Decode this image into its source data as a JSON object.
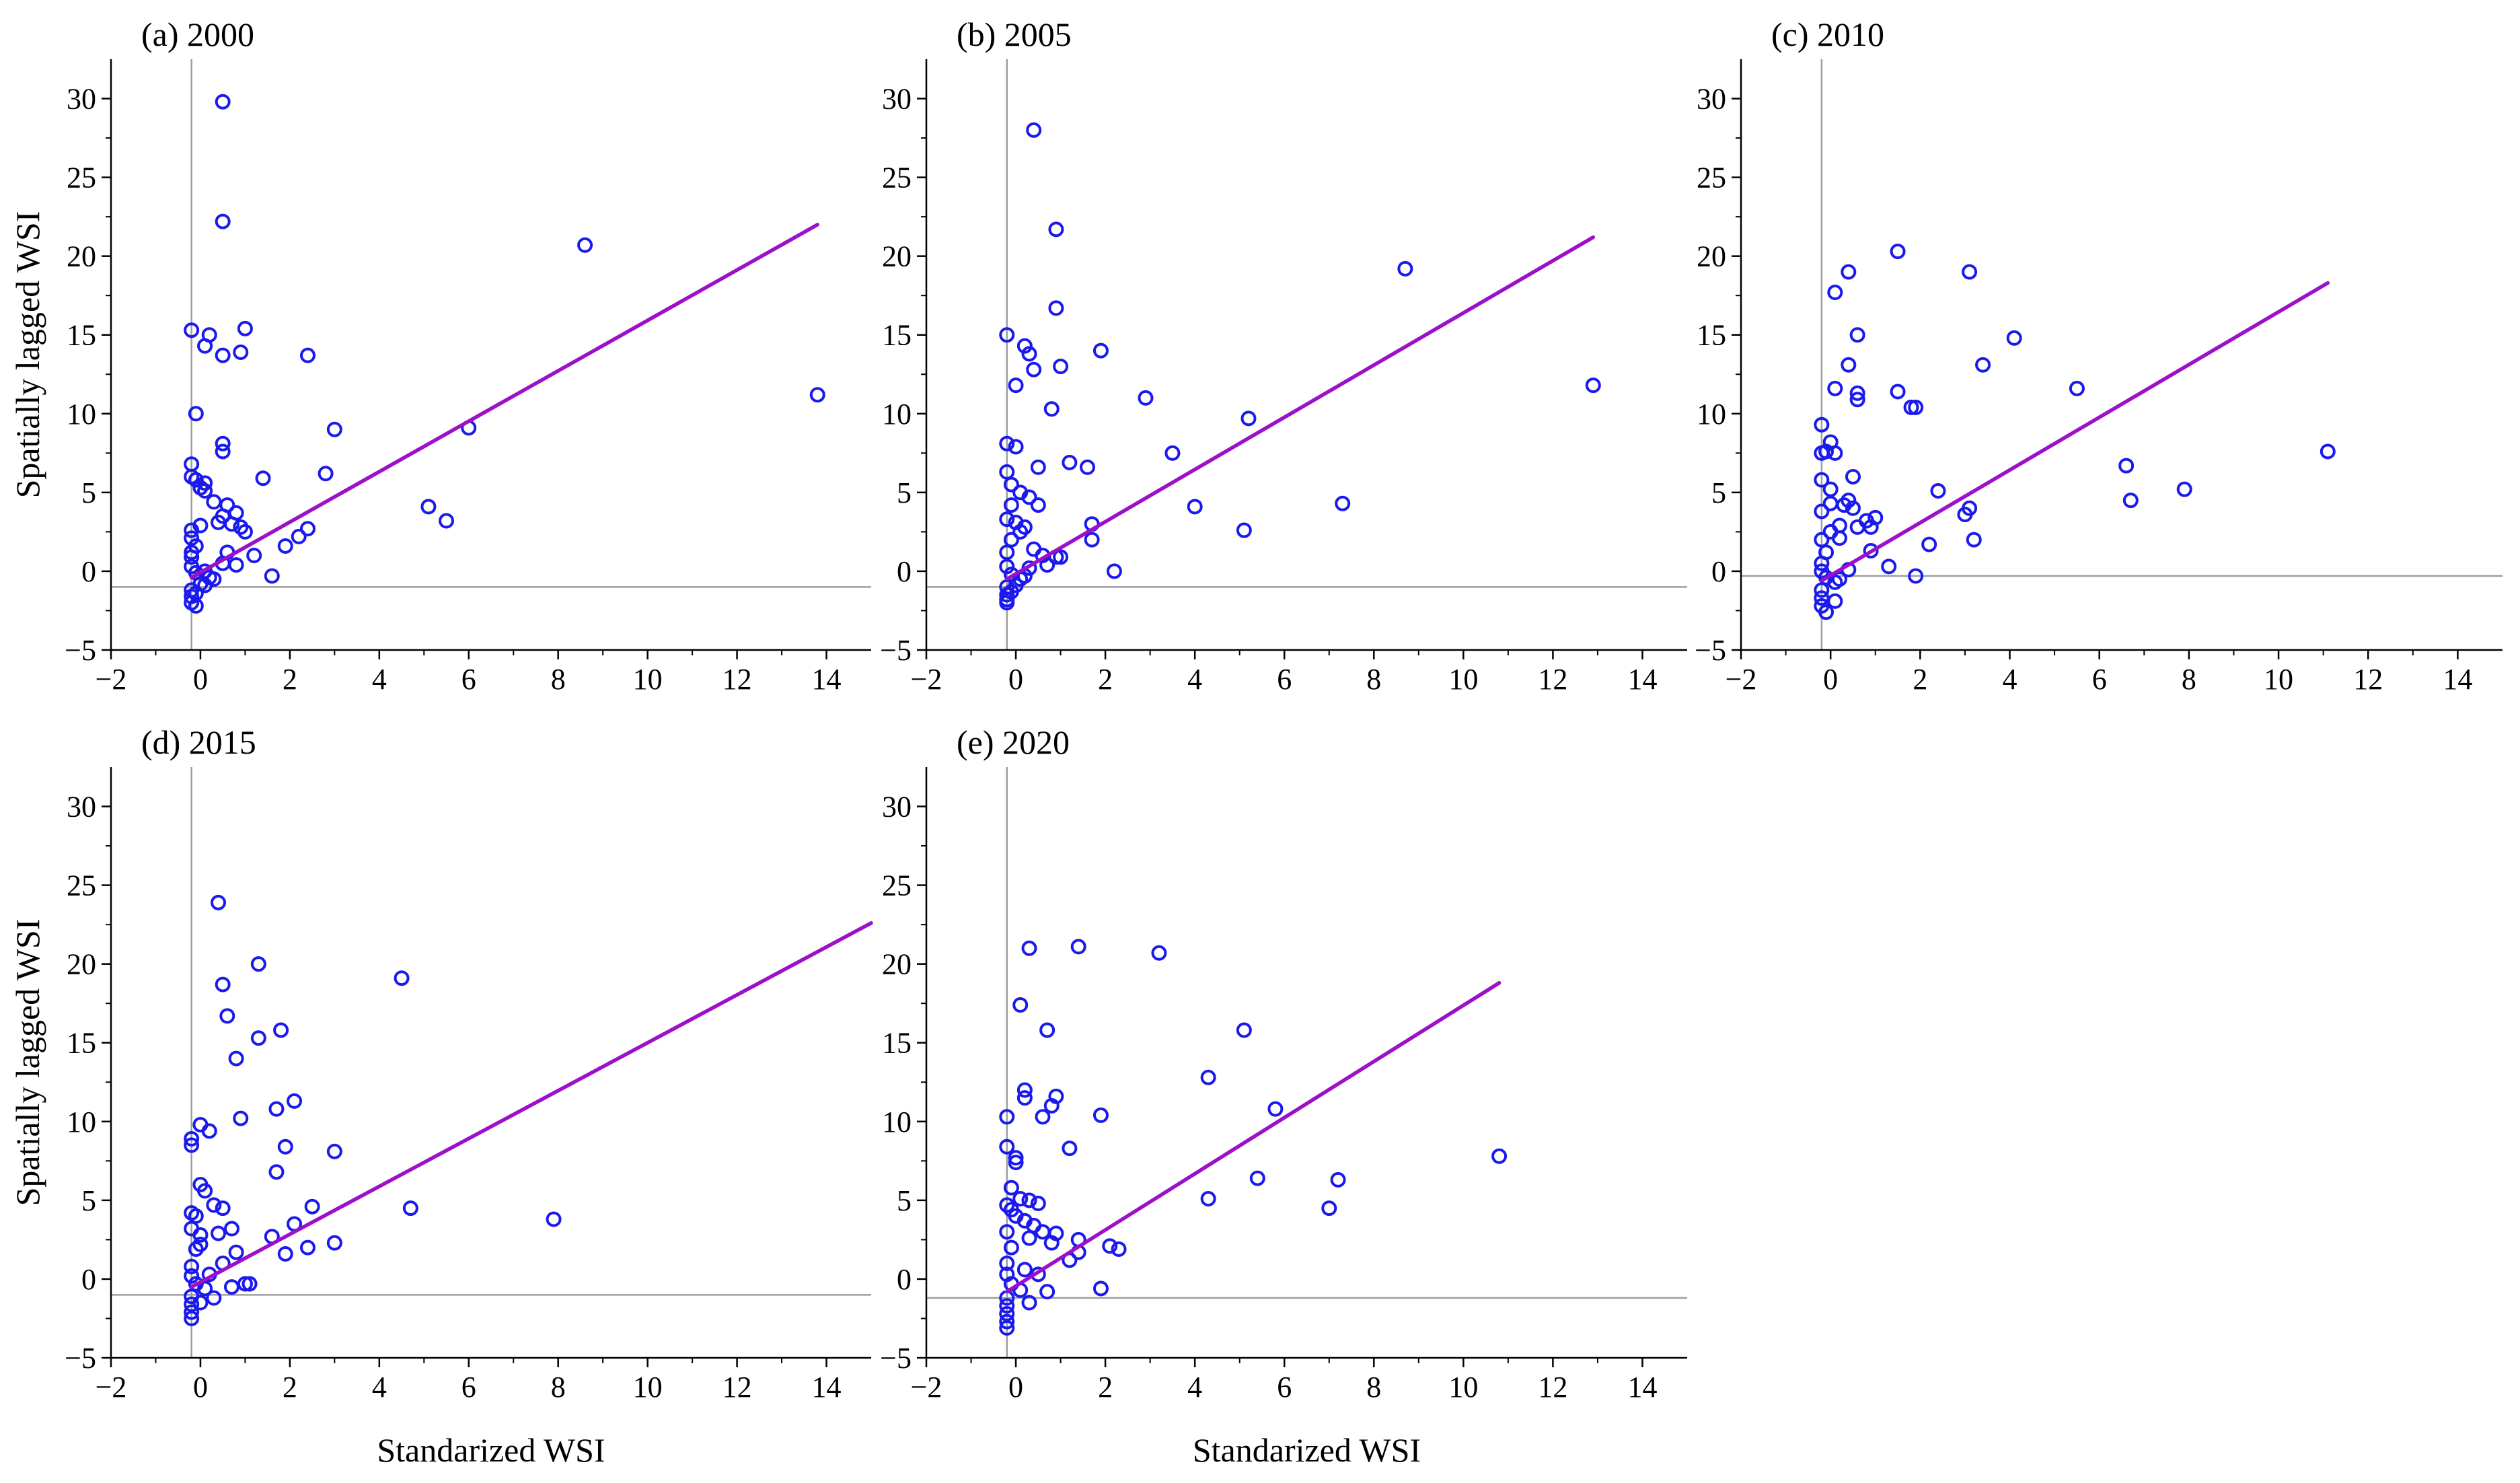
{
  "figure": {
    "shared_ylabel": "Spatially lagged WSI",
    "shared_xlabel": "Standarized WSI"
  },
  "style": {
    "point_color": "#1a1aee",
    "fit_color": "#9b10c8",
    "axis_color": "#000000",
    "ref_line_color": "#9e9e9e"
  },
  "chart_data": [
    {
      "type": "scatter",
      "title": "(a)  2000",
      "xlabel": "",
      "ylabel": "Spatially lagged WSI",
      "xlim": [
        -2,
        15
      ],
      "ylim": [
        -5,
        32.5
      ],
      "xticks": [
        -2,
        0,
        2,
        4,
        6,
        8,
        10,
        12,
        14
      ],
      "yticks": [
        -5,
        0,
        5,
        10,
        15,
        20,
        25,
        30
      ],
      "ref_v": -0.2,
      "ref_h": -1.0,
      "fit": {
        "x0": -0.2,
        "y0": -0.4,
        "x1": 13.8,
        "y1": 22.0
      },
      "points": [
        [
          0.5,
          29.8
        ],
        [
          0.5,
          22.2
        ],
        [
          8.6,
          20.7
        ],
        [
          13.8,
          11.2
        ],
        [
          -0.2,
          15.3
        ],
        [
          0.2,
          15.0
        ],
        [
          1.0,
          15.4
        ],
        [
          0.1,
          14.3
        ],
        [
          0.5,
          13.7
        ],
        [
          0.9,
          13.9
        ],
        [
          2.4,
          13.7
        ],
        [
          -0.1,
          10.0
        ],
        [
          3.0,
          9.0
        ],
        [
          6.0,
          9.1
        ],
        [
          0.5,
          8.1
        ],
        [
          0.5,
          7.6
        ],
        [
          -0.2,
          6.8
        ],
        [
          -0.2,
          6.0
        ],
        [
          -0.1,
          5.8
        ],
        [
          0.1,
          5.6
        ],
        [
          0.0,
          5.3
        ],
        [
          0.1,
          5.1
        ],
        [
          1.4,
          5.9
        ],
        [
          2.8,
          6.2
        ],
        [
          5.1,
          4.1
        ],
        [
          5.5,
          3.2
        ],
        [
          0.3,
          4.4
        ],
        [
          0.6,
          4.2
        ],
        [
          0.8,
          3.7
        ],
        [
          0.5,
          3.5
        ],
        [
          0.4,
          3.1
        ],
        [
          0.7,
          3.0
        ],
        [
          0.9,
          2.8
        ],
        [
          1.0,
          2.5
        ],
        [
          2.4,
          2.7
        ],
        [
          2.2,
          2.2
        ],
        [
          1.9,
          1.6
        ],
        [
          1.2,
          1.0
        ],
        [
          0.8,
          0.4
        ],
        [
          1.6,
          -0.3
        ],
        [
          0.6,
          1.2
        ],
        [
          0.0,
          2.9
        ],
        [
          -0.2,
          2.1
        ],
        [
          -0.1,
          1.6
        ],
        [
          -0.2,
          0.9
        ],
        [
          -0.2,
          0.3
        ],
        [
          -0.1,
          -0.1
        ],
        [
          0.1,
          0.0
        ],
        [
          0.2,
          -0.4
        ],
        [
          0.0,
          -0.8
        ],
        [
          -0.2,
          -1.2
        ],
        [
          -0.2,
          -1.6
        ],
        [
          -0.2,
          -2.0
        ],
        [
          -0.1,
          -2.2
        ],
        [
          0.1,
          -0.9
        ],
        [
          0.3,
          -0.5
        ],
        [
          0.5,
          0.5
        ],
        [
          -0.2,
          1.2
        ],
        [
          -0.1,
          -1.4
        ],
        [
          -0.2,
          2.6
        ]
      ]
    },
    {
      "type": "scatter",
      "title": "(b) 2005",
      "xlabel": "",
      "ylabel": "",
      "xlim": [
        -2,
        15
      ],
      "ylim": [
        -5,
        32.5
      ],
      "xticks": [
        -2,
        0,
        2,
        4,
        6,
        8,
        10,
        12,
        14
      ],
      "yticks": [
        -5,
        0,
        5,
        10,
        15,
        20,
        25,
        30
      ],
      "ref_v": -0.2,
      "ref_h": -1.0,
      "fit": {
        "x0": -0.2,
        "y0": -0.5,
        "x1": 12.9,
        "y1": 21.2
      },
      "points": [
        [
          0.4,
          28.0
        ],
        [
          0.9,
          21.7
        ],
        [
          8.7,
          19.2
        ],
        [
          12.9,
          11.8
        ],
        [
          0.9,
          16.7
        ],
        [
          -0.2,
          15.0
        ],
        [
          0.2,
          14.3
        ],
        [
          0.3,
          13.8
        ],
        [
          0.4,
          12.8
        ],
        [
          1.0,
          13.0
        ],
        [
          1.9,
          14.0
        ],
        [
          0.0,
          11.8
        ],
        [
          0.8,
          10.3
        ],
        [
          2.9,
          11.0
        ],
        [
          5.2,
          9.7
        ],
        [
          -0.2,
          8.1
        ],
        [
          0.0,
          7.9
        ],
        [
          1.2,
          6.9
        ],
        [
          1.6,
          6.6
        ],
        [
          0.5,
          6.6
        ],
        [
          3.5,
          7.5
        ],
        [
          -0.2,
          6.3
        ],
        [
          -0.1,
          5.5
        ],
        [
          0.1,
          5.0
        ],
        [
          0.3,
          4.7
        ],
        [
          0.5,
          4.2
        ],
        [
          -0.1,
          4.2
        ],
        [
          4.0,
          4.1
        ],
        [
          7.3,
          4.3
        ],
        [
          1.7,
          3.0
        ],
        [
          5.1,
          2.6
        ],
        [
          1.7,
          2.0
        ],
        [
          0.2,
          2.8
        ],
        [
          0.1,
          2.5
        ],
        [
          -0.2,
          3.3
        ],
        [
          -0.1,
          2.0
        ],
        [
          0.4,
          1.4
        ],
        [
          0.6,
          1.0
        ],
        [
          0.9,
          0.9
        ],
        [
          1.0,
          0.9
        ],
        [
          0.7,
          0.4
        ],
        [
          2.2,
          0.0
        ],
        [
          -0.2,
          1.2
        ],
        [
          -0.2,
          0.3
        ],
        [
          -0.1,
          -0.2
        ],
        [
          0.1,
          -0.5
        ],
        [
          -0.2,
          -1.0
        ],
        [
          -0.2,
          -1.5
        ],
        [
          -0.2,
          -2.0
        ],
        [
          0.0,
          -0.9
        ],
        [
          0.2,
          -0.3
        ],
        [
          0.3,
          0.2
        ],
        [
          -0.1,
          -1.3
        ],
        [
          -0.2,
          -1.8
        ],
        [
          0.0,
          3.1
        ]
      ]
    },
    {
      "type": "scatter",
      "title": "(c)  2010",
      "xlabel": "",
      "ylabel": "",
      "xlim": [
        -2,
        15
      ],
      "ylim": [
        -5,
        32.5
      ],
      "xticks": [
        -2,
        0,
        2,
        4,
        6,
        8,
        10,
        12,
        14
      ],
      "yticks": [
        -5,
        0,
        5,
        10,
        15,
        20,
        25,
        30
      ],
      "ref_v": -0.2,
      "ref_h": -0.3,
      "fit": {
        "x0": -0.2,
        "y0": -0.6,
        "x1": 11.1,
        "y1": 18.3
      },
      "points": [
        [
          1.5,
          20.3
        ],
        [
          3.1,
          19.0
        ],
        [
          0.4,
          19.0
        ],
        [
          0.1,
          17.7
        ],
        [
          0.6,
          15.0
        ],
        [
          4.1,
          14.8
        ],
        [
          3.4,
          13.1
        ],
        [
          0.4,
          13.1
        ],
        [
          0.1,
          11.6
        ],
        [
          0.6,
          11.3
        ],
        [
          1.5,
          11.4
        ],
        [
          0.6,
          10.9
        ],
        [
          1.8,
          10.4
        ],
        [
          5.5,
          11.6
        ],
        [
          1.9,
          10.4
        ],
        [
          -0.2,
          9.3
        ],
        [
          -0.1,
          7.6
        ],
        [
          -0.2,
          7.5
        ],
        [
          0.0,
          8.2
        ],
        [
          0.1,
          7.5
        ],
        [
          6.6,
          6.7
        ],
        [
          11.1,
          7.6
        ],
        [
          6.7,
          4.5
        ],
        [
          7.9,
          5.2
        ],
        [
          -0.2,
          5.8
        ],
        [
          0.0,
          5.2
        ],
        [
          0.5,
          6.0
        ],
        [
          2.4,
          5.1
        ],
        [
          0.4,
          4.5
        ],
        [
          0.0,
          4.3
        ],
        [
          0.3,
          4.2
        ],
        [
          0.5,
          4.0
        ],
        [
          3.1,
          4.0
        ],
        [
          3.0,
          3.6
        ],
        [
          0.8,
          3.2
        ],
        [
          0.6,
          2.8
        ],
        [
          1.0,
          3.4
        ],
        [
          0.2,
          2.9
        ],
        [
          0.0,
          2.5
        ],
        [
          0.2,
          2.1
        ],
        [
          0.9,
          2.8
        ],
        [
          2.2,
          1.7
        ],
        [
          3.2,
          2.0
        ],
        [
          1.3,
          0.3
        ],
        [
          0.9,
          1.3
        ],
        [
          1.9,
          -0.3
        ],
        [
          -0.2,
          2.0
        ],
        [
          -0.1,
          1.2
        ],
        [
          -0.2,
          0.5
        ],
        [
          -0.2,
          0.0
        ],
        [
          -0.1,
          -0.4
        ],
        [
          0.1,
          -0.7
        ],
        [
          -0.2,
          -1.2
        ],
        [
          -0.2,
          -1.7
        ],
        [
          -0.2,
          -2.2
        ],
        [
          -0.1,
          -2.6
        ],
        [
          0.2,
          -0.5
        ],
        [
          0.4,
          0.1
        ],
        [
          -0.2,
          3.8
        ],
        [
          0.1,
          -1.9
        ]
      ]
    },
    {
      "type": "scatter",
      "title": "(d)  2015",
      "xlabel": "",
      "ylabel": "Spatially lagged WSI",
      "xlim": [
        -2,
        15
      ],
      "ylim": [
        -5,
        32.5
      ],
      "xticks": [
        -2,
        0,
        2,
        4,
        6,
        8,
        10,
        12,
        14
      ],
      "yticks": [
        -5,
        0,
        5,
        10,
        15,
        20,
        25,
        30
      ],
      "ref_v": -0.2,
      "ref_h": -1.0,
      "fit": {
        "x0": -0.2,
        "y0": -0.5,
        "x1": 15.0,
        "y1": 22.6
      },
      "points": [
        [
          0.4,
          23.9
        ],
        [
          1.3,
          20.0
        ],
        [
          0.5,
          18.7
        ],
        [
          4.5,
          19.1
        ],
        [
          0.6,
          16.7
        ],
        [
          1.8,
          15.8
        ],
        [
          1.3,
          15.3
        ],
        [
          0.8,
          14.0
        ],
        [
          2.1,
          11.3
        ],
        [
          1.7,
          10.8
        ],
        [
          0.9,
          10.2
        ],
        [
          1.9,
          8.4
        ],
        [
          3.0,
          8.1
        ],
        [
          0.0,
          9.8
        ],
        [
          0.2,
          9.4
        ],
        [
          -0.2,
          8.9
        ],
        [
          -0.2,
          8.5
        ],
        [
          1.7,
          6.8
        ],
        [
          0.0,
          6.0
        ],
        [
          0.1,
          5.6
        ],
        [
          -0.2,
          4.2
        ],
        [
          0.3,
          4.7
        ],
        [
          0.5,
          4.5
        ],
        [
          2.5,
          4.6
        ],
        [
          4.7,
          4.5
        ],
        [
          7.9,
          3.8
        ],
        [
          2.1,
          3.5
        ],
        [
          1.6,
          2.7
        ],
        [
          0.7,
          3.2
        ],
        [
          0.4,
          2.9
        ],
        [
          0.0,
          2.8
        ],
        [
          2.4,
          2.0
        ],
        [
          3.0,
          2.3
        ],
        [
          1.9,
          1.6
        ],
        [
          0.8,
          1.7
        ],
        [
          0.5,
          1.0
        ],
        [
          1.0,
          -0.3
        ],
        [
          1.1,
          -0.3
        ],
        [
          0.7,
          -0.5
        ],
        [
          -0.2,
          3.2
        ],
        [
          -0.1,
          1.9
        ],
        [
          -0.2,
          0.8
        ],
        [
          -0.2,
          0.2
        ],
        [
          -0.1,
          -0.3
        ],
        [
          0.1,
          -0.6
        ],
        [
          -0.2,
          -1.1
        ],
        [
          -0.2,
          -1.6
        ],
        [
          -0.2,
          -2.1
        ],
        [
          -0.2,
          -2.5
        ],
        [
          0.0,
          -1.5
        ],
        [
          0.3,
          -1.2
        ],
        [
          0.2,
          0.3
        ],
        [
          -0.1,
          4.0
        ],
        [
          0.0,
          2.2
        ]
      ]
    },
    {
      "type": "scatter",
      "title": "(e) 2020",
      "xlabel": "",
      "ylabel": "",
      "xlim": [
        -2,
        15
      ],
      "ylim": [
        -5,
        32.5
      ],
      "xticks": [
        -2,
        0,
        2,
        4,
        6,
        8,
        10,
        12,
        14
      ],
      "yticks": [
        -5,
        0,
        5,
        10,
        15,
        20,
        25,
        30
      ],
      "ref_v": -0.2,
      "ref_h": -1.2,
      "fit": {
        "x0": -0.2,
        "y0": -0.8,
        "x1": 10.8,
        "y1": 18.8
      },
      "points": [
        [
          0.3,
          21.0
        ],
        [
          1.4,
          21.1
        ],
        [
          3.2,
          20.7
        ],
        [
          0.1,
          17.4
        ],
        [
          0.7,
          15.8
        ],
        [
          5.1,
          15.8
        ],
        [
          4.3,
          12.8
        ],
        [
          0.2,
          12.0
        ],
        [
          0.2,
          11.5
        ],
        [
          0.9,
          11.6
        ],
        [
          0.8,
          11.0
        ],
        [
          0.6,
          10.3
        ],
        [
          1.9,
          10.4
        ],
        [
          -0.2,
          10.3
        ],
        [
          5.8,
          10.8
        ],
        [
          1.2,
          8.3
        ],
        [
          -0.2,
          8.4
        ],
        [
          0.0,
          7.7
        ],
        [
          0.0,
          7.4
        ],
        [
          10.8,
          7.8
        ],
        [
          5.4,
          6.4
        ],
        [
          7.2,
          6.3
        ],
        [
          7.0,
          4.5
        ],
        [
          4.3,
          5.1
        ],
        [
          -0.1,
          5.8
        ],
        [
          0.1,
          5.1
        ],
        [
          0.3,
          5.0
        ],
        [
          0.5,
          4.8
        ],
        [
          -0.2,
          4.7
        ],
        [
          0.0,
          4.0
        ],
        [
          0.2,
          3.7
        ],
        [
          0.4,
          3.4
        ],
        [
          0.6,
          3.0
        ],
        [
          0.9,
          2.9
        ],
        [
          1.4,
          2.5
        ],
        [
          2.1,
          2.1
        ],
        [
          2.3,
          1.9
        ],
        [
          0.8,
          2.3
        ],
        [
          1.4,
          1.7
        ],
        [
          1.2,
          1.2
        ],
        [
          1.9,
          -0.6
        ],
        [
          0.7,
          -0.8
        ],
        [
          0.5,
          0.3
        ],
        [
          -0.2,
          3.0
        ],
        [
          -0.1,
          2.0
        ],
        [
          -0.2,
          1.0
        ],
        [
          -0.2,
          0.3
        ],
        [
          -0.1,
          -0.3
        ],
        [
          0.1,
          -0.7
        ],
        [
          -0.2,
          -1.2
        ],
        [
          -0.2,
          -1.7
        ],
        [
          -0.2,
          -2.2
        ],
        [
          -0.2,
          -2.7
        ],
        [
          -0.2,
          -3.1
        ],
        [
          0.3,
          -1.5
        ],
        [
          0.2,
          0.6
        ],
        [
          -0.1,
          4.4
        ],
        [
          0.3,
          2.6
        ]
      ]
    }
  ]
}
